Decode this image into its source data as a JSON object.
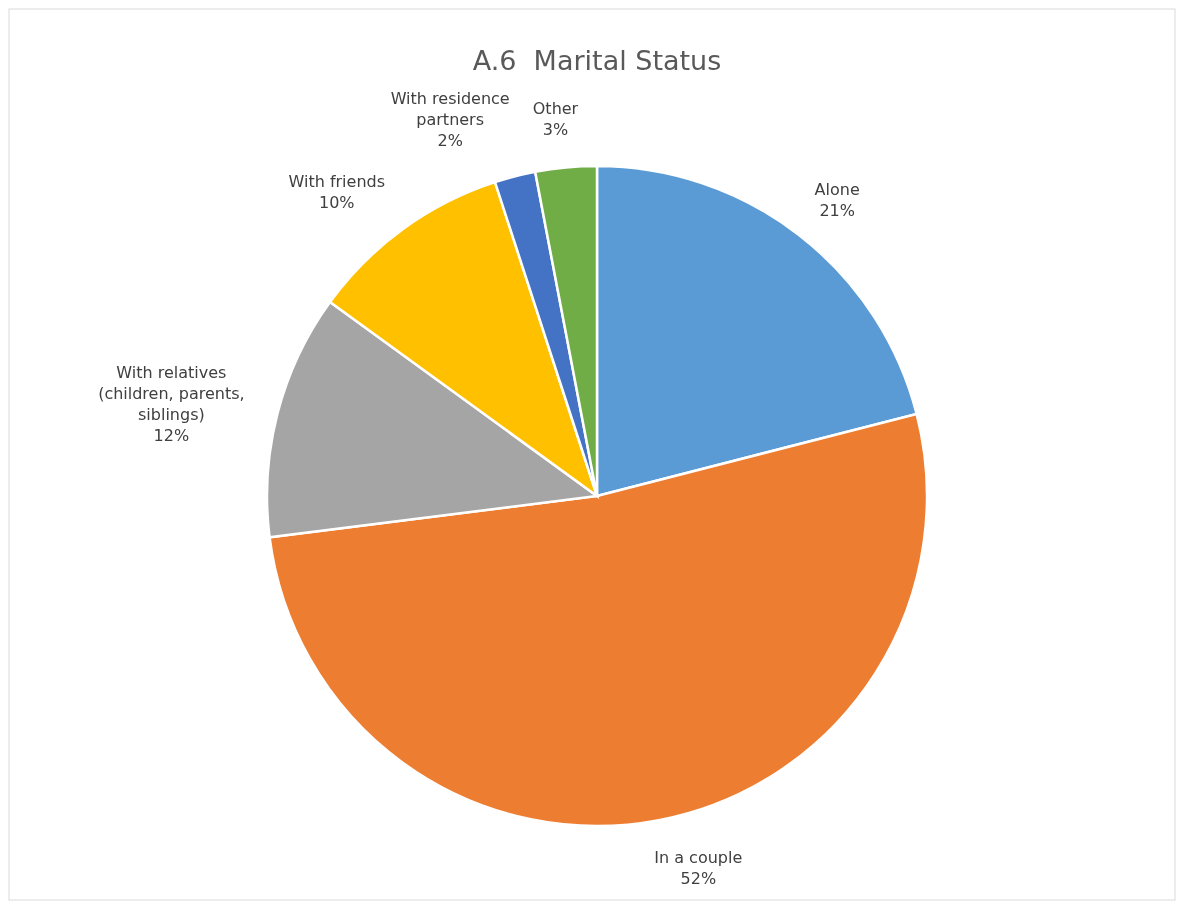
{
  "chart_data": {
    "type": "pie",
    "title": "A.6  Marital Status",
    "categories": [
      "Alone",
      "In a couple",
      "With relatives (children, parents, siblings)",
      "With friends",
      "With residence partners",
      "Other"
    ],
    "values": [
      21,
      52,
      12,
      10,
      2,
      3
    ],
    "colors": [
      "#5b9bd5",
      "#ed7d31",
      "#a5a5a5",
      "#ffc000",
      "#4472c4",
      "#70ad47"
    ],
    "value_labels": [
      "21%",
      "52%",
      "12%",
      "10%",
      "2%",
      "3%"
    ]
  }
}
